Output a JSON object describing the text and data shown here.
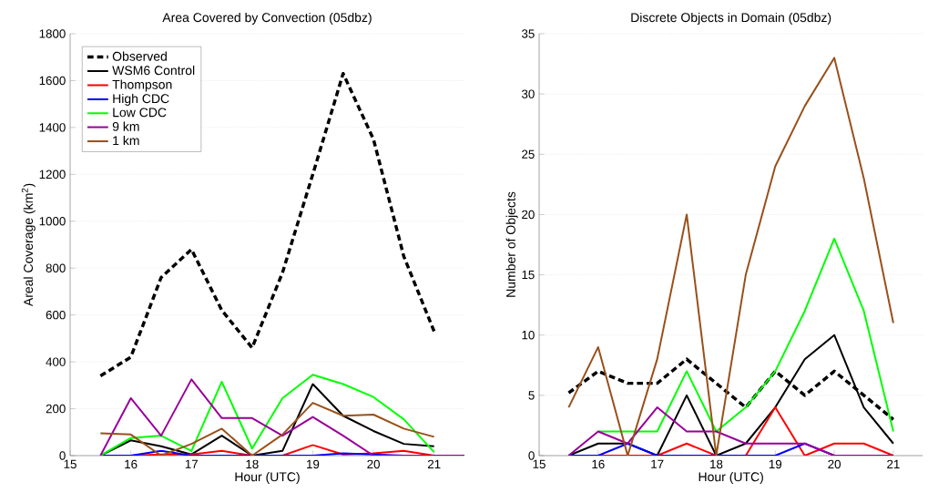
{
  "chart_data": [
    {
      "type": "line",
      "title": "Area Covered by Convection (05dbz)",
      "xlabel": "Hour (UTC)",
      "ylabel": "Areal Coverage (km$^{2}$)",
      "x": [
        15.5,
        16,
        16.5,
        17,
        17.5,
        18,
        18.5,
        19,
        19.5,
        20,
        20.5,
        21,
        21.5
      ],
      "xlim": [
        15,
        21.5
      ],
      "ylim": [
        0,
        1800
      ],
      "xticks": [
        15,
        16,
        17,
        18,
        19,
        20,
        21
      ],
      "yticks": [
        0,
        200,
        400,
        600,
        800,
        1000,
        1200,
        1400,
        1600,
        1800
      ],
      "grid": "y",
      "legend": "top left",
      "series": [
        {
          "name": "Observed",
          "color": "#000000",
          "line_style": "dashed",
          "values": [
            340,
            420,
            760,
            880,
            620,
            460,
            780,
            1200,
            1630,
            1350,
            850,
            530,
            null
          ]
        },
        {
          "name": "WSM6 Control",
          "color": "#000000",
          "values": [
            0,
            65,
            40,
            5,
            85,
            0,
            20,
            305,
            170,
            105,
            50,
            40,
            null
          ]
        },
        {
          "name": "Thompson",
          "color": "#ff0000",
          "values": [
            0,
            0,
            5,
            5,
            20,
            0,
            0,
            45,
            5,
            10,
            20,
            0,
            null
          ]
        },
        {
          "name": "High CDC",
          "color": "#0000ff",
          "values": [
            0,
            0,
            20,
            0,
            0,
            0,
            0,
            0,
            10,
            5,
            0,
            0,
            null
          ]
        },
        {
          "name": "Low CDC",
          "color": "#00ff00",
          "values": [
            0,
            75,
            85,
            20,
            315,
            30,
            245,
            345,
            305,
            250,
            155,
            15,
            null
          ]
        },
        {
          "name": "9 km",
          "color": "#990099",
          "values": [
            0,
            245,
            85,
            325,
            160,
            160,
            85,
            165,
            85,
            0,
            0,
            0,
            0
          ]
        },
        {
          "name": "1 km",
          "color": "#99501a",
          "values": [
            95,
            90,
            0,
            50,
            115,
            0,
            90,
            225,
            170,
            175,
            115,
            80,
            null
          ]
        }
      ]
    },
    {
      "type": "line",
      "title": "Discrete Objects in Domain (05dbz)",
      "xlabel": "Hour (UTC)",
      "ylabel": "Number of Objects",
      "x": [
        15.5,
        16,
        16.5,
        17,
        17.5,
        18,
        18.5,
        19,
        19.5,
        20,
        20.5,
        21
      ],
      "xlim": [
        15,
        21.5
      ],
      "ylim": [
        0,
        35
      ],
      "xticks": [
        15,
        16,
        17,
        18,
        19,
        20,
        21
      ],
      "yticks": [
        0,
        5,
        10,
        15,
        20,
        25,
        30,
        35
      ],
      "grid": "y",
      "series": [
        {
          "color": "#000000",
          "line_style": "dashed",
          "values": [
            5.2,
            7,
            6,
            6,
            8,
            6,
            4,
            7,
            5,
            7,
            5,
            3
          ]
        },
        {
          "color": "#000000",
          "values": [
            0,
            1,
            1,
            0,
            5,
            0,
            1,
            4,
            8,
            10,
            4,
            1
          ]
        },
        {
          "color": "#ff0000",
          "values": [
            0,
            0,
            0,
            0,
            1,
            0,
            0,
            4,
            0,
            1,
            1,
            0
          ]
        },
        {
          "color": "#0000ff",
          "values": [
            0,
            0,
            1,
            0,
            0,
            0,
            0,
            0,
            1,
            0,
            null,
            null
          ]
        },
        {
          "color": "#00ff00",
          "values": [
            null,
            2,
            2,
            2,
            7,
            2,
            4,
            7,
            12,
            18,
            12,
            2
          ]
        },
        {
          "color": "#990099",
          "values": [
            0,
            2,
            1,
            4,
            2,
            2,
            1,
            1,
            1,
            0,
            0,
            0
          ]
        },
        {
          "color": "#99501a",
          "values": [
            4,
            9,
            0,
            8,
            20,
            0,
            15,
            24,
            29,
            33,
            23,
            11
          ]
        }
      ]
    }
  ]
}
